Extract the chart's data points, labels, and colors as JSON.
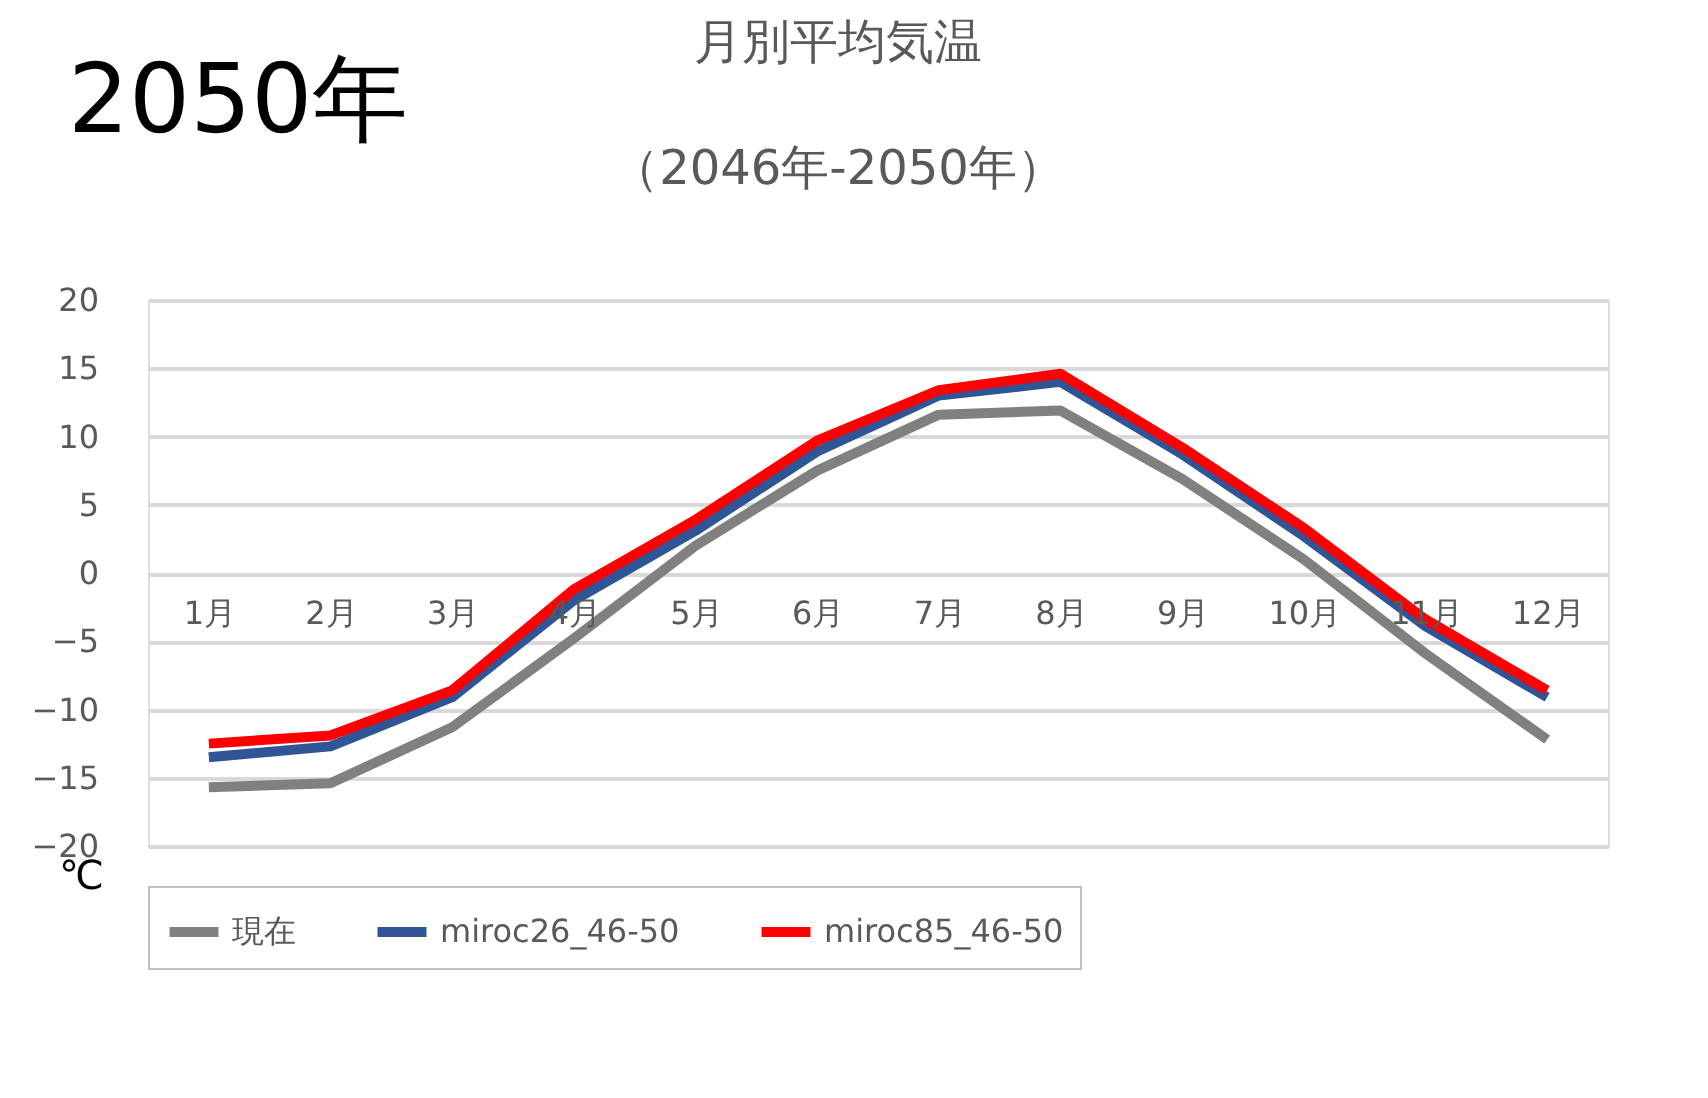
{
  "chart_data": {
    "type": "line",
    "title": [
      "月別平均気温",
      "（2046年-2050年）"
    ],
    "ylabel": "℃",
    "annotations": [
      "2050年"
    ],
    "categories": [
      "1月",
      "2月",
      "3月",
      "4月",
      "5月",
      "6月",
      "7月",
      "8月",
      "9月",
      "10月",
      "11月",
      "12月"
    ],
    "series": [
      {
        "name": "現在",
        "color": "#808080",
        "values": [
          -15.7,
          -15.4,
          -11.3,
          -4.8,
          2.0,
          7.5,
          11.6,
          11.9,
          6.9,
          1.0,
          -5.9,
          -12.2
        ]
      },
      {
        "name": "miroc26_46-50",
        "color": "#2f5597",
        "values": [
          -13.5,
          -12.7,
          -9.1,
          -2.0,
          3.1,
          8.9,
          13.0,
          14.0,
          8.7,
          2.7,
          -3.9,
          -9.1
        ]
      },
      {
        "name": "miroc85_46-50",
        "color": "#ff0000",
        "values": [
          -12.5,
          -11.9,
          -8.6,
          -1.2,
          3.9,
          9.7,
          13.4,
          14.6,
          9.2,
          3.3,
          -3.4,
          -8.6
        ]
      }
    ],
    "ylim": [
      -20,
      20
    ],
    "yticks": [
      -20,
      -15,
      -10,
      -5,
      0,
      5,
      10,
      15,
      20
    ],
    "grid": "y",
    "legend": "bottom",
    "marker": "none",
    "line_style": "solid"
  }
}
